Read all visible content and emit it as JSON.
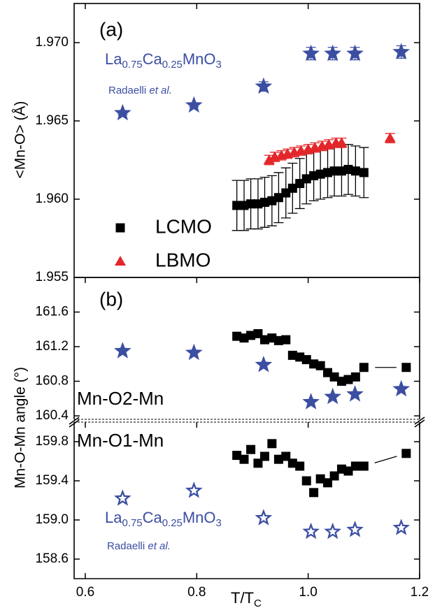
{
  "chart_data": [
    {
      "type": "scatter",
      "panel_label": "(a)",
      "ylabel": "<Mn-O> (Å)",
      "xlim": [
        0.58,
        1.2
      ],
      "ylim": [
        1.955,
        1.9725
      ],
      "yticks": [
        1.955,
        {
          "value": 1.96,
          "label": "1.960"
        },
        1.965,
        {
          "value": 1.97,
          "label": "1.970"
        }
      ],
      "reference_formula": [
        "La",
        "0.75",
        "Ca",
        "0.25",
        "MnO",
        "3"
      ],
      "reference_author": [
        "Radaelli ",
        "et al."
      ],
      "legend": "lower left",
      "series": [
        {
          "marker": "star",
          "color": "#3b4ea2",
          "x": [
            0.667,
            0.795,
            0.92,
            1.005,
            1.044,
            1.084,
            1.167
          ],
          "values": [
            1.9655,
            1.966,
            1.9672,
            1.9693,
            1.9693,
            1.9693,
            1.9694
          ],
          "errors": [
            0.0001,
            0.0001,
            0.0003,
            0.0004,
            0.0004,
            0.0004,
            0.0004
          ]
        },
        {
          "name": "LCMO",
          "marker": "square",
          "color": "#000000",
          "x": [
            0.872,
            0.885,
            0.897,
            0.91,
            0.922,
            0.935,
            0.947,
            0.96,
            0.972,
            0.985,
            0.997,
            1.01,
            1.022,
            1.035,
            1.047,
            1.06,
            1.072,
            1.085,
            1.1
          ],
          "values": [
            1.9596,
            1.9596,
            1.9597,
            1.9597,
            1.9598,
            1.9599,
            1.9601,
            1.9604,
            1.9607,
            1.961,
            1.9613,
            1.9615,
            1.9616,
            1.9617,
            1.9618,
            1.9618,
            1.9619,
            1.9618,
            1.9617
          ],
          "errors": [
            0.0016,
            0.0016,
            0.0016,
            0.0016,
            0.0016,
            0.0016,
            0.0016,
            0.0016,
            0.0016,
            0.0016,
            0.0016,
            0.0016,
            0.0016,
            0.0016,
            0.0016,
            0.0016,
            0.0016,
            0.0016,
            0.0016
          ]
        },
        {
          "name": "LBMO",
          "marker": "triangle",
          "color": "#e3262a",
          "x": [
            0.93,
            0.94,
            0.952,
            0.963,
            0.975,
            0.987,
            1.0,
            1.012,
            1.025,
            1.037,
            1.05,
            1.06,
            1.147
          ],
          "values": [
            1.9625,
            1.9627,
            1.9628,
            1.9629,
            1.963,
            1.9631,
            1.9632,
            1.9633,
            1.9634,
            1.9635,
            1.9636,
            1.9636,
            1.9639
          ],
          "errors": [
            0.0003,
            0.0003,
            0.0003,
            0.0003,
            0.0003,
            0.0003,
            0.0003,
            0.0003,
            0.0003,
            0.0003,
            0.0003,
            0.0003,
            0.0003
          ]
        }
      ]
    },
    {
      "type": "scatter",
      "panel_label": "(b)",
      "ylabel": "Mn-O-Mn angle (°)",
      "annotation": "Mn-O2-Mn",
      "xlim": [
        0.58,
        1.2
      ],
      "ylim": [
        160.36,
        162.0
      ],
      "yticks": [
        160.4,
        160.8,
        161.2,
        161.6
      ],
      "series": [
        {
          "marker": "star",
          "color": "#3b4ea2",
          "x": [
            0.667,
            0.795,
            0.92,
            1.005,
            1.044,
            1.084,
            1.167
          ],
          "values": [
            161.15,
            161.13,
            160.99,
            160.56,
            160.62,
            160.65,
            160.71
          ]
        },
        {
          "marker": "square",
          "color": "#000000",
          "connector": true,
          "x": [
            0.872,
            0.885,
            0.897,
            0.91,
            0.922,
            0.935,
            0.947,
            0.96,
            0.972,
            0.985,
            0.997,
            1.01,
            1.022,
            1.035,
            1.047,
            1.06,
            1.072,
            1.085,
            1.1,
            1.176
          ],
          "values": [
            161.32,
            161.3,
            161.33,
            161.35,
            161.28,
            161.3,
            161.27,
            161.28,
            161.1,
            161.08,
            161.05,
            161.0,
            160.98,
            160.9,
            160.85,
            160.8,
            160.82,
            160.85,
            160.96,
            160.96
          ]
        }
      ]
    },
    {
      "type": "scatter",
      "annotation": "Mn-O1-Mn",
      "xlabel": [
        "T/T",
        "C"
      ],
      "xlim": [
        0.58,
        1.2
      ],
      "ylim": [
        158.4,
        160.0
      ],
      "yticks": [
        158.6,
        {
          "value": 159.0,
          "label": "159.0"
        },
        159.4,
        159.8
      ],
      "xticks": [
        0.6,
        0.8,
        {
          "value": 1.0,
          "label": "1.0"
        },
        1.2
      ],
      "reference_formula": [
        "La",
        "0.75",
        "Ca",
        "0.25",
        "MnO",
        "3"
      ],
      "reference_author": [
        "Radaelli ",
        "et al."
      ],
      "series": [
        {
          "marker": "open-star",
          "color": "#3b4ea2",
          "x": [
            0.667,
            0.795,
            0.92,
            1.005,
            1.044,
            1.084,
            1.167
          ],
          "values": [
            159.22,
            159.3,
            159.02,
            158.88,
            158.88,
            158.9,
            158.92
          ]
        },
        {
          "marker": "square",
          "color": "#000000",
          "connector": true,
          "x": [
            0.872,
            0.885,
            0.897,
            0.91,
            0.922,
            0.935,
            0.947,
            0.96,
            0.972,
            0.985,
            0.997,
            1.01,
            1.022,
            1.035,
            1.047,
            1.06,
            1.072,
            1.085,
            1.1,
            1.176
          ],
          "values": [
            159.66,
            159.62,
            159.72,
            159.58,
            159.65,
            159.78,
            159.62,
            159.65,
            159.58,
            159.55,
            159.4,
            159.28,
            159.42,
            159.38,
            159.45,
            159.52,
            159.5,
            159.55,
            159.55,
            159.68
          ]
        }
      ]
    }
  ]
}
